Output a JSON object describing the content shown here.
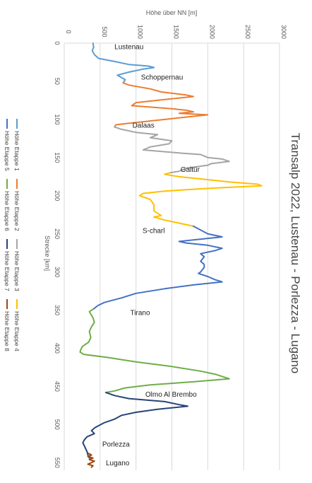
{
  "chart_data": {
    "type": "line",
    "title": "Transalp 2022, Lustenau - Porlezza - Lugano",
    "xlabel": "Strecke [km]",
    "ylabel": "Höhe über NN [m]",
    "xlim": [
      0,
      560
    ],
    "ylim": [
      0,
      3000
    ],
    "x_ticks": [
      0,
      50,
      100,
      150,
      200,
      250,
      300,
      350,
      400,
      450,
      500,
      550
    ],
    "y_ticks": [
      0,
      500,
      1000,
      1500,
      2000,
      2500,
      3000
    ],
    "grid": true,
    "legend_position": "left",
    "annotations": [
      {
        "text": "Lustenau",
        "x": 4,
        "y": 700
      },
      {
        "text": "Schoppernau",
        "x": 44,
        "y": 1070
      },
      {
        "text": "Dalaas",
        "x": 107,
        "y": 950
      },
      {
        "text": "Galtür",
        "x": 165,
        "y": 1620
      },
      {
        "text": "S-charl",
        "x": 245,
        "y": 1090
      },
      {
        "text": "Tirano",
        "x": 353,
        "y": 920
      },
      {
        "text": "Olmo Al Brembo",
        "x": 460,
        "y": 1130
      },
      {
        "text": "Porlezza",
        "x": 525,
        "y": 530
      },
      {
        "text": "Lugano",
        "x": 550,
        "y": 580
      }
    ],
    "series": [
      {
        "name": "Höhe Etappe 1",
        "color": "#5b9bd5",
        "points": [
          [
            0,
            400
          ],
          [
            5,
            410
          ],
          [
            10,
            390
          ],
          [
            15,
            420
          ],
          [
            20,
            480
          ],
          [
            24,
            700
          ],
          [
            28,
            900
          ],
          [
            30,
            1170
          ],
          [
            32,
            1250
          ],
          [
            34,
            1100
          ],
          [
            38,
            900
          ],
          [
            42,
            740
          ],
          [
            48,
            850
          ],
          [
            52,
            820
          ]
        ]
      },
      {
        "name": "Höhe Etappe 2",
        "color": "#ed7d31",
        "points": [
          [
            52,
            820
          ],
          [
            55,
            900
          ],
          [
            60,
            1200
          ],
          [
            64,
            1350
          ],
          [
            68,
            1700
          ],
          [
            70,
            1800
          ],
          [
            74,
            1400
          ],
          [
            78,
            1000
          ],
          [
            82,
            940
          ],
          [
            86,
            1500
          ],
          [
            88,
            1700
          ],
          [
            90,
            1800
          ],
          [
            92,
            1600
          ],
          [
            94,
            2000
          ],
          [
            96,
            1800
          ],
          [
            100,
            1400
          ],
          [
            104,
            1000
          ],
          [
            107,
            720
          ],
          [
            110,
            700
          ]
        ]
      },
      {
        "name": "Höhe Etappe 3",
        "color": "#a5a5a5",
        "points": [
          [
            110,
            700
          ],
          [
            113,
            800
          ],
          [
            117,
            1000
          ],
          [
            120,
            1300
          ],
          [
            124,
            1200
          ],
          [
            128,
            1500
          ],
          [
            132,
            1460
          ],
          [
            136,
            1200
          ],
          [
            140,
            1100
          ],
          [
            144,
            1600
          ],
          [
            146,
            1900
          ],
          [
            148,
            1950
          ],
          [
            150,
            2000
          ],
          [
            152,
            2200
          ],
          [
            155,
            2300
          ],
          [
            158,
            2050
          ],
          [
            160,
            2000
          ],
          [
            162,
            1850
          ],
          [
            164,
            1700
          ],
          [
            166,
            1650
          ],
          [
            168,
            1600
          ],
          [
            170,
            1470
          ]
        ]
      },
      {
        "name": "Höhe Etappe 4",
        "color": "#ffc000",
        "points": [
          [
            170,
            1470
          ],
          [
            172,
            1400
          ],
          [
            175,
            1600
          ],
          [
            178,
            1900
          ],
          [
            182,
            2300
          ],
          [
            185,
            2700
          ],
          [
            187,
            2750
          ],
          [
            189,
            2300
          ],
          [
            191,
            1900
          ],
          [
            194,
            1400
          ],
          [
            197,
            1100
          ],
          [
            200,
            1050
          ],
          [
            205,
            1200
          ],
          [
            212,
            1250
          ],
          [
            220,
            1250
          ],
          [
            226,
            1350
          ],
          [
            228,
            1250
          ],
          [
            232,
            1400
          ],
          [
            236,
            1600
          ],
          [
            240,
            1800
          ]
        ]
      },
      {
        "name": "Höhe Etappe 5",
        "color": "#4472c4",
        "points": [
          [
            240,
            1800
          ],
          [
            245,
            1900
          ],
          [
            250,
            2000
          ],
          [
            254,
            2200
          ],
          [
            256,
            2000
          ],
          [
            258,
            1800
          ],
          [
            260,
            1600
          ],
          [
            262,
            1700
          ],
          [
            265,
            2000
          ],
          [
            269,
            2200
          ],
          [
            272,
            2100
          ],
          [
            276,
            1900
          ],
          [
            280,
            1950
          ],
          [
            286,
            1900
          ],
          [
            290,
            1950
          ],
          [
            294,
            1950
          ],
          [
            300,
            1900
          ],
          [
            302,
            1870
          ],
          [
            306,
            2000
          ],
          [
            310,
            2100
          ],
          [
            313,
            2200
          ],
          [
            317,
            1800
          ],
          [
            322,
            1400
          ],
          [
            328,
            1000
          ],
          [
            334,
            800
          ],
          [
            340,
            560
          ],
          [
            344,
            470
          ],
          [
            349,
            400
          ]
        ]
      },
      {
        "name": "Höhe Etappe 6",
        "color": "#70ad47",
        "points": [
          [
            349,
            400
          ],
          [
            352,
            350
          ],
          [
            360,
            400
          ],
          [
            366,
            420
          ],
          [
            372,
            380
          ],
          [
            378,
            350
          ],
          [
            386,
            370
          ],
          [
            392,
            340
          ],
          [
            396,
            280
          ],
          [
            398,
            250
          ],
          [
            402,
            230
          ],
          [
            405,
            220
          ],
          [
            408,
            270
          ],
          [
            412,
            600
          ],
          [
            418,
            1000
          ],
          [
            424,
            1500
          ],
          [
            430,
            1900
          ],
          [
            434,
            2100
          ],
          [
            440,
            2300
          ],
          [
            444,
            1800
          ],
          [
            448,
            1200
          ],
          [
            452,
            850
          ],
          [
            456,
            700
          ],
          [
            458,
            580
          ]
        ]
      },
      {
        "name": "Höhe Etappe 7",
        "color": "#264478",
        "points": [
          [
            458,
            580
          ],
          [
            462,
            700
          ],
          [
            466,
            900
          ],
          [
            470,
            1400
          ],
          [
            474,
            1600
          ],
          [
            476,
            1720
          ],
          [
            480,
            1300
          ],
          [
            484,
            1000
          ],
          [
            488,
            800
          ],
          [
            493,
            700
          ],
          [
            498,
            550
          ],
          [
            504,
            430
          ],
          [
            508,
            380
          ],
          [
            512,
            420
          ],
          [
            516,
            320
          ],
          [
            520,
            280
          ],
          [
            524,
            260
          ],
          [
            528,
            280
          ],
          [
            532,
            300
          ],
          [
            536,
            320
          ],
          [
            540,
            330
          ],
          [
            544,
            350
          ]
        ]
      },
      {
        "name": "Höhe Etappe 8",
        "color": "#9e480e",
        "points": [
          [
            538,
            340
          ],
          [
            540,
            380
          ],
          [
            542,
            330
          ],
          [
            544,
            400
          ],
          [
            546,
            350
          ],
          [
            548,
            420
          ],
          [
            550,
            380
          ],
          [
            552,
            330
          ],
          [
            554,
            400
          ],
          [
            556,
            380
          ]
        ]
      }
    ]
  }
}
